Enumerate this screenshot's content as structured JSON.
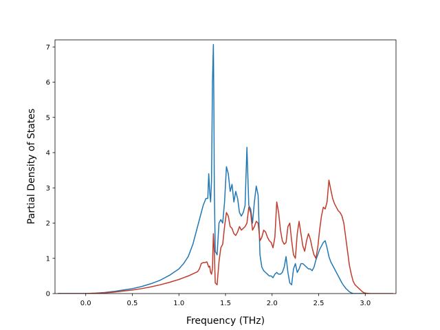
{
  "chart_data": {
    "type": "line",
    "title": "",
    "xlabel": "Frequency (THz)",
    "ylabel": "Partial Density of States",
    "xlim": [
      -0.33,
      3.33
    ],
    "ylim": [
      0,
      7.2
    ],
    "xticks": [
      0.0,
      0.5,
      1.0,
      1.5,
      2.0,
      2.5,
      3.0
    ],
    "xtick_labels": [
      "0.0",
      "0.5",
      "1.0",
      "1.5",
      "2.0",
      "2.5",
      "3.0"
    ],
    "yticks": [
      0,
      1,
      2,
      3,
      4,
      5,
      6,
      7
    ],
    "ytick_labels": [
      "0",
      "1",
      "2",
      "3",
      "4",
      "5",
      "6",
      "7"
    ],
    "grid": false,
    "legend": "none",
    "series": [
      {
        "color": "#1f77b4",
        "x": [
          -0.3,
          -0.1,
          0.0,
          0.1,
          0.2,
          0.3,
          0.4,
          0.5,
          0.6,
          0.7,
          0.8,
          0.9,
          1.0,
          1.05,
          1.1,
          1.15,
          1.2,
          1.23,
          1.26,
          1.29,
          1.31,
          1.32,
          1.33,
          1.34,
          1.35,
          1.36,
          1.37,
          1.375,
          1.38,
          1.39,
          1.41,
          1.43,
          1.45,
          1.47,
          1.49,
          1.51,
          1.53,
          1.55,
          1.57,
          1.59,
          1.61,
          1.63,
          1.65,
          1.67,
          1.69,
          1.71,
          1.73,
          1.75,
          1.77,
          1.79,
          1.81,
          1.83,
          1.85,
          1.87,
          1.89,
          1.91,
          1.93,
          1.95,
          1.97,
          1.99,
          2.01,
          2.03,
          2.05,
          2.07,
          2.09,
          2.11,
          2.13,
          2.15,
          2.17,
          2.19,
          2.21,
          2.23,
          2.25,
          2.27,
          2.29,
          2.31,
          2.33,
          2.35,
          2.37,
          2.39,
          2.41,
          2.43,
          2.45,
          2.47,
          2.49,
          2.51,
          2.53,
          2.55,
          2.57,
          2.59,
          2.61,
          2.63,
          2.65,
          2.67,
          2.69,
          2.71,
          2.73,
          2.75,
          2.77,
          2.79,
          2.81,
          2.83,
          2.85,
          2.87,
          2.89,
          2.91,
          2.93,
          3.0
        ],
        "y": [
          0.0,
          0.0,
          0.0,
          0.01,
          0.03,
          0.06,
          0.1,
          0.14,
          0.2,
          0.28,
          0.38,
          0.52,
          0.7,
          0.85,
          1.05,
          1.4,
          1.9,
          2.2,
          2.5,
          2.7,
          2.7,
          3.4,
          2.9,
          2.6,
          3.2,
          6.0,
          7.07,
          5.5,
          3.0,
          1.2,
          1.1,
          2.0,
          2.1,
          2.0,
          2.6,
          3.6,
          3.4,
          2.9,
          3.1,
          2.6,
          2.9,
          2.7,
          2.3,
          2.2,
          2.3,
          2.5,
          4.15,
          2.5,
          2.4,
          2.0,
          2.6,
          3.05,
          2.8,
          1.1,
          0.75,
          0.65,
          0.6,
          0.55,
          0.5,
          0.5,
          0.45,
          0.55,
          0.6,
          0.55,
          0.55,
          0.6,
          0.75,
          1.05,
          0.6,
          0.3,
          0.25,
          0.7,
          0.85,
          0.6,
          0.7,
          0.85,
          0.85,
          0.8,
          0.75,
          0.7,
          0.7,
          0.65,
          0.75,
          0.95,
          1.1,
          1.25,
          1.35,
          1.45,
          1.5,
          1.3,
          1.05,
          0.9,
          0.8,
          0.7,
          0.6,
          0.5,
          0.4,
          0.3,
          0.22,
          0.15,
          0.1,
          0.05,
          0.02,
          0.0,
          0.0,
          0.0,
          0.0,
          0.0
        ]
      },
      {
        "color": "#c0392b",
        "x": [
          -0.3,
          -0.1,
          0.0,
          0.1,
          0.2,
          0.3,
          0.4,
          0.5,
          0.6,
          0.7,
          0.8,
          0.9,
          1.0,
          1.05,
          1.1,
          1.15,
          1.2,
          1.22,
          1.24,
          1.26,
          1.28,
          1.3,
          1.32,
          1.33,
          1.34,
          1.35,
          1.36,
          1.37,
          1.38,
          1.39,
          1.41,
          1.43,
          1.45,
          1.47,
          1.49,
          1.51,
          1.53,
          1.55,
          1.57,
          1.59,
          1.61,
          1.63,
          1.65,
          1.67,
          1.69,
          1.71,
          1.73,
          1.75,
          1.77,
          1.79,
          1.81,
          1.83,
          1.85,
          1.87,
          1.89,
          1.91,
          1.93,
          1.95,
          1.97,
          1.99,
          2.01,
          2.03,
          2.05,
          2.07,
          2.09,
          2.11,
          2.13,
          2.15,
          2.17,
          2.19,
          2.21,
          2.23,
          2.25,
          2.27,
          2.29,
          2.31,
          2.33,
          2.35,
          2.37,
          2.39,
          2.41,
          2.43,
          2.45,
          2.47,
          2.49,
          2.51,
          2.53,
          2.55,
          2.57,
          2.59,
          2.61,
          2.63,
          2.65,
          2.67,
          2.69,
          2.71,
          2.73,
          2.75,
          2.77,
          2.79,
          2.81,
          2.83,
          2.85,
          2.87,
          2.89,
          2.91,
          2.93,
          2.95,
          2.97,
          2.99,
          3.01,
          3.05,
          3.1,
          3.2,
          3.3
        ],
        "y": [
          0.0,
          0.0,
          0.0,
          0.01,
          0.02,
          0.04,
          0.07,
          0.1,
          0.14,
          0.19,
          0.25,
          0.32,
          0.4,
          0.45,
          0.5,
          0.56,
          0.62,
          0.7,
          0.85,
          0.88,
          0.88,
          0.9,
          0.75,
          0.78,
          0.6,
          0.55,
          0.7,
          1.7,
          1.2,
          0.3,
          0.25,
          0.9,
          1.3,
          1.4,
          1.9,
          2.3,
          2.2,
          1.9,
          1.85,
          1.7,
          1.65,
          1.75,
          1.9,
          1.8,
          1.85,
          1.9,
          2.0,
          2.45,
          2.3,
          1.8,
          1.9,
          2.05,
          2.0,
          1.5,
          1.6,
          1.8,
          1.75,
          1.6,
          1.5,
          1.45,
          1.3,
          1.6,
          2.6,
          2.3,
          1.8,
          1.5,
          1.4,
          1.45,
          1.9,
          2.0,
          1.5,
          1.1,
          1.0,
          1.7,
          2.05,
          1.7,
          1.35,
          1.2,
          1.5,
          1.7,
          1.55,
          1.3,
          1.1,
          1.0,
          1.3,
          1.8,
          2.2,
          2.45,
          2.4,
          2.6,
          3.22,
          2.95,
          2.7,
          2.55,
          2.45,
          2.35,
          2.3,
          2.2,
          2.0,
          1.6,
          1.2,
          0.8,
          0.55,
          0.35,
          0.25,
          0.2,
          0.15,
          0.1,
          0.05,
          0.02,
          0.01,
          0.0,
          0.0,
          0.0,
          0.0
        ]
      }
    ]
  }
}
